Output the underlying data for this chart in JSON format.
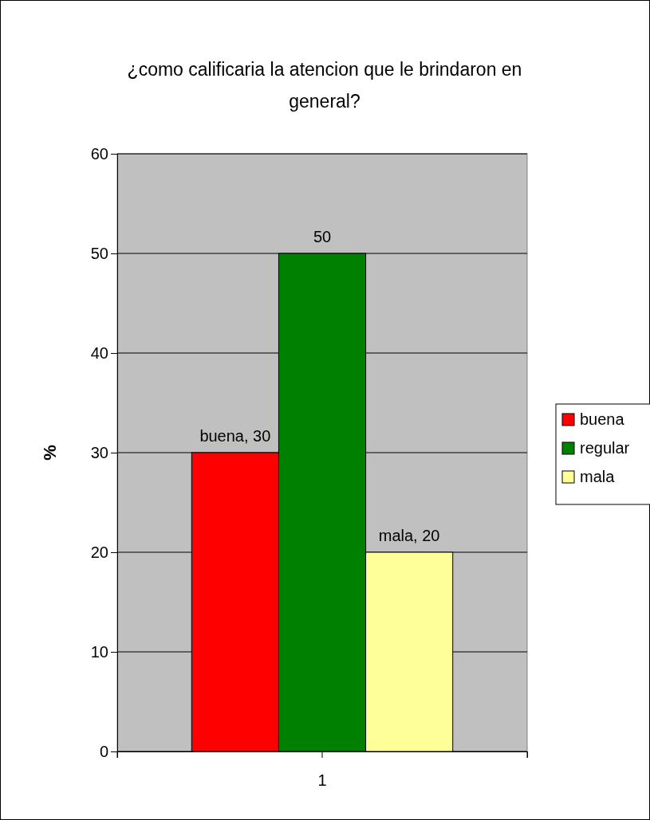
{
  "chart_data": {
    "type": "bar",
    "title": "¿como calificaria la atencion que le brindaron en general?",
    "ylabel": "%",
    "categories": [
      "1"
    ],
    "series": [
      {
        "name": "buena",
        "color": "#ff0000",
        "values": [
          30
        ],
        "value_labels": [
          "buena, 30"
        ]
      },
      {
        "name": "regular",
        "color": "#008000",
        "values": [
          50
        ],
        "value_labels": [
          "50"
        ]
      },
      {
        "name": "mala",
        "color": "#ffff99",
        "values": [
          20
        ],
        "value_labels": [
          "mala, 20"
        ]
      }
    ],
    "ylim": [
      0,
      60
    ],
    "yticks": [
      0,
      10,
      20,
      30,
      40,
      50,
      60
    ],
    "grid": "y",
    "legend": "right"
  }
}
